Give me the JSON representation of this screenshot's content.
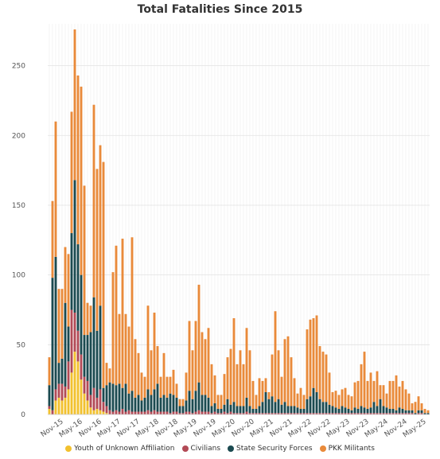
{
  "chart_data": {
    "type": "bar",
    "stacked": true,
    "title": "Total Fatalities Since 2015",
    "xlabel": "",
    "ylabel": "",
    "ylim": [
      0,
      280
    ],
    "yticks": [
      0,
      50,
      100,
      150,
      200,
      250
    ],
    "grid": true,
    "legend_position": "bottom",
    "x_tick_labels": [
      "Nov-15",
      "May-16",
      "Nov-16",
      "May-17",
      "Nov-17",
      "May-18",
      "Nov-18",
      "May-19",
      "Nov-19",
      "May-20",
      "Nov-20",
      "May-21",
      "Nov-21",
      "May-22",
      "Nov-22",
      "May-23",
      "Nov-23",
      "May-24",
      "Nov-24",
      "May-25"
    ],
    "categories": [
      "Jul-15",
      "Aug-15",
      "Sep-15",
      "Oct-15",
      "Nov-15",
      "Dec-15",
      "Jan-16",
      "Feb-16",
      "Mar-16",
      "Apr-16",
      "May-16",
      "Jun-16",
      "Jul-16",
      "Aug-16",
      "Sep-16",
      "Oct-16",
      "Nov-16",
      "Dec-16",
      "Jan-17",
      "Feb-17",
      "Mar-17",
      "Apr-17",
      "May-17",
      "Jun-17",
      "Jul-17",
      "Aug-17",
      "Sep-17",
      "Oct-17",
      "Nov-17",
      "Dec-17",
      "Jan-18",
      "Feb-18",
      "Mar-18",
      "Apr-18",
      "May-18",
      "Jun-18",
      "Jul-18",
      "Aug-18",
      "Sep-18",
      "Oct-18",
      "Nov-18",
      "Dec-18",
      "Jan-19",
      "Feb-19",
      "Mar-19",
      "Apr-19",
      "May-19",
      "Jun-19",
      "Jul-19",
      "Aug-19",
      "Sep-19",
      "Oct-19",
      "Nov-19",
      "Dec-19",
      "Jan-20",
      "Feb-20",
      "Mar-20",
      "Apr-20",
      "May-20",
      "Jun-20",
      "Jul-20",
      "Aug-20",
      "Sep-20",
      "Oct-20",
      "Nov-20",
      "Dec-20",
      "Jan-21",
      "Feb-21",
      "Mar-21",
      "Apr-21",
      "May-21",
      "Jun-21",
      "Jul-21",
      "Aug-21",
      "Sep-21",
      "Oct-21",
      "Nov-21",
      "Dec-21",
      "Jan-22",
      "Feb-22",
      "Mar-22",
      "Apr-22",
      "May-22",
      "Jun-22",
      "Jul-22",
      "Aug-22",
      "Sep-22",
      "Oct-22",
      "Nov-22",
      "Dec-22",
      "Jan-23",
      "Feb-23",
      "Mar-23",
      "Apr-23",
      "May-23",
      "Jun-23",
      "Jul-23",
      "Aug-23",
      "Sep-23",
      "Oct-23",
      "Nov-23",
      "Dec-23",
      "Jan-24",
      "Feb-24",
      "Mar-24",
      "Apr-24",
      "May-24",
      "Jun-24",
      "Jul-24",
      "Aug-24",
      "Sep-24",
      "Oct-24",
      "Nov-24",
      "Dec-24",
      "Jan-25",
      "Feb-25",
      "Mar-25",
      "Apr-25",
      "May-25",
      "Jun-25"
    ],
    "series": [
      {
        "name": "Youth of Unknown Affiliation",
        "color": "#f2c12e",
        "values": [
          4,
          0,
          10,
          12,
          10,
          12,
          18,
          30,
          45,
          38,
          25,
          15,
          10,
          5,
          3,
          4,
          3,
          2,
          1,
          0,
          0,
          0,
          0,
          0,
          0,
          0,
          0,
          0,
          0,
          0,
          0,
          0,
          0,
          0,
          0,
          0,
          0,
          0,
          0,
          0,
          0,
          0,
          0,
          0,
          0,
          0,
          0,
          0,
          0,
          0,
          0,
          0,
          0,
          0,
          0,
          0,
          0,
          0,
          0,
          0,
          0,
          0,
          0,
          0,
          0,
          0,
          0,
          0,
          0,
          0,
          0,
          0,
          0,
          0,
          0,
          0,
          0,
          0,
          0,
          0,
          0,
          0,
          0,
          0,
          0,
          0,
          0,
          0,
          0,
          0,
          0,
          0,
          0,
          0,
          0,
          0,
          0,
          0,
          0,
          0,
          0,
          0,
          0,
          0,
          0,
          0,
          0,
          0,
          0,
          0,
          0,
          0,
          0,
          0,
          0,
          0,
          0,
          0,
          0,
          0
        ]
      },
      {
        "name": "Civilians",
        "color": "#b24a56",
        "values": [
          2,
          3,
          8,
          10,
          12,
          8,
          20,
          45,
          28,
          22,
          18,
          12,
          14,
          9,
          16,
          8,
          15,
          7,
          5,
          3,
          2,
          3,
          2,
          4,
          2,
          3,
          2,
          2,
          2,
          2,
          2,
          3,
          2,
          3,
          2,
          2,
          2,
          2,
          1,
          2,
          2,
          1,
          1,
          2,
          2,
          1,
          2,
          3,
          2,
          2,
          2,
          1,
          2,
          1,
          1,
          2,
          1,
          2,
          1,
          1,
          1,
          1,
          2,
          1,
          1,
          1,
          1,
          1,
          1,
          1,
          1,
          1,
          1,
          1,
          1,
          1,
          1,
          1,
          1,
          1,
          1,
          1,
          1,
          1,
          1,
          1,
          1,
          1,
          1,
          1,
          1,
          1,
          1,
          1,
          1,
          1,
          1,
          1,
          1,
          1,
          1,
          1,
          1,
          1,
          1,
          1,
          1,
          1,
          1,
          1,
          1,
          1,
          1,
          1,
          1,
          0,
          1,
          1,
          0,
          0
        ]
      },
      {
        "name": "State Security Forces",
        "color": "#1b4a50",
        "values": [
          15,
          95,
          95,
          15,
          18,
          60,
          25,
          55,
          95,
          62,
          57,
          30,
          33,
          45,
          65,
          48,
          60,
          10,
          15,
          20,
          20,
          18,
          20,
          15,
          20,
          12,
          15,
          10,
          12,
          8,
          10,
          15,
          12,
          15,
          20,
          10,
          12,
          10,
          14,
          12,
          10,
          5,
          5,
          8,
          15,
          10,
          15,
          20,
          12,
          12,
          10,
          5,
          6,
          3,
          3,
          5,
          10,
          5,
          8,
          5,
          5,
          5,
          10,
          5,
          3,
          3,
          5,
          8,
          15,
          10,
          12,
          8,
          10,
          6,
          8,
          5,
          5,
          5,
          4,
          3,
          3,
          10,
          12,
          18,
          15,
          10,
          8,
          8,
          6,
          5,
          4,
          3,
          5,
          4,
          3,
          2,
          4,
          3,
          5,
          4,
          3,
          4,
          8,
          5,
          10,
          5,
          4,
          3,
          3,
          2,
          4,
          3,
          2,
          2,
          2,
          1,
          2,
          2,
          1,
          1
        ]
      },
      {
        "name": "PKK Militants",
        "color": "#e98a3a",
        "values": [
          20,
          55,
          97,
          53,
          50,
          40,
          52,
          87,
          108,
          121,
          135,
          107,
          23,
          19,
          138,
          116,
          115,
          162,
          16,
          10,
          80,
          100,
          50,
          107,
          50,
          48,
          110,
          42,
          30,
          20,
          15,
          60,
          32,
          55,
          27,
          15,
          30,
          15,
          12,
          18,
          10,
          5,
          5,
          20,
          50,
          35,
          50,
          70,
          45,
          40,
          50,
          30,
          20,
          10,
          10,
          22,
          30,
          40,
          60,
          30,
          40,
          30,
          50,
          40,
          20,
          10,
          20,
          15,
          10,
          5,
          30,
          65,
          35,
          20,
          45,
          50,
          35,
          20,
          10,
          15,
          10,
          50,
          55,
          50,
          55,
          38,
          36,
          34,
          23,
          10,
          12,
          10,
          12,
          14,
          10,
          10,
          18,
          20,
          30,
          40,
          20,
          25,
          15,
          25,
          10,
          15,
          10,
          20,
          20,
          25,
          15,
          20,
          15,
          12,
          5,
          8,
          10,
          5,
          3,
          2
        ]
      }
    ]
  }
}
